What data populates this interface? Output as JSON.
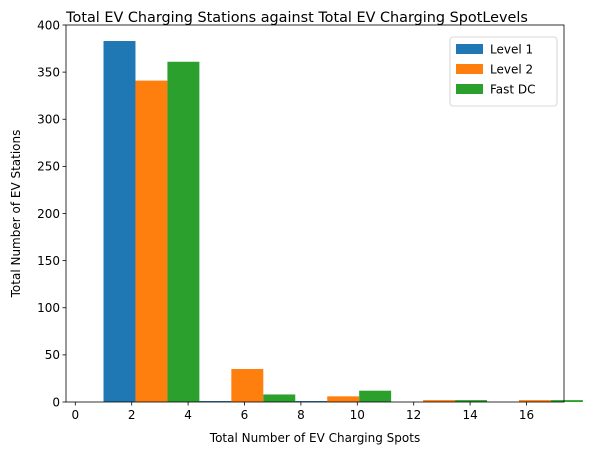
{
  "chart_data": {
    "type": "bar",
    "title": "Total  EV Charging Stations against Total  EV Charging SpotLevels",
    "xlabel": "Total Number of EV Charging Spots",
    "ylabel": "Total Number of EV Stations",
    "xlim": [
      -0.33,
      17.33
    ],
    "ylim": [
      0,
      400
    ],
    "x_ticks": [
      0,
      2,
      4,
      6,
      8,
      10,
      12,
      14,
      16
    ],
    "y_ticks": [
      0,
      50,
      100,
      150,
      200,
      250,
      300,
      350,
      400
    ],
    "bin_edges": [
      1,
      4.4,
      7.8,
      11.2,
      14.6,
      18
    ],
    "series": [
      {
        "name": "Level 1",
        "color": "#1f77b4",
        "values": [
          383,
          1,
          1,
          0,
          0
        ]
      },
      {
        "name": "Level 2",
        "color": "#ff7f0e",
        "values": [
          341,
          35,
          6,
          2,
          2
        ]
      },
      {
        "name": "Fast DC",
        "color": "#2ca02c",
        "values": [
          361,
          8,
          12,
          2,
          2
        ]
      }
    ],
    "legend_position": "upper right",
    "grid": false
  }
}
